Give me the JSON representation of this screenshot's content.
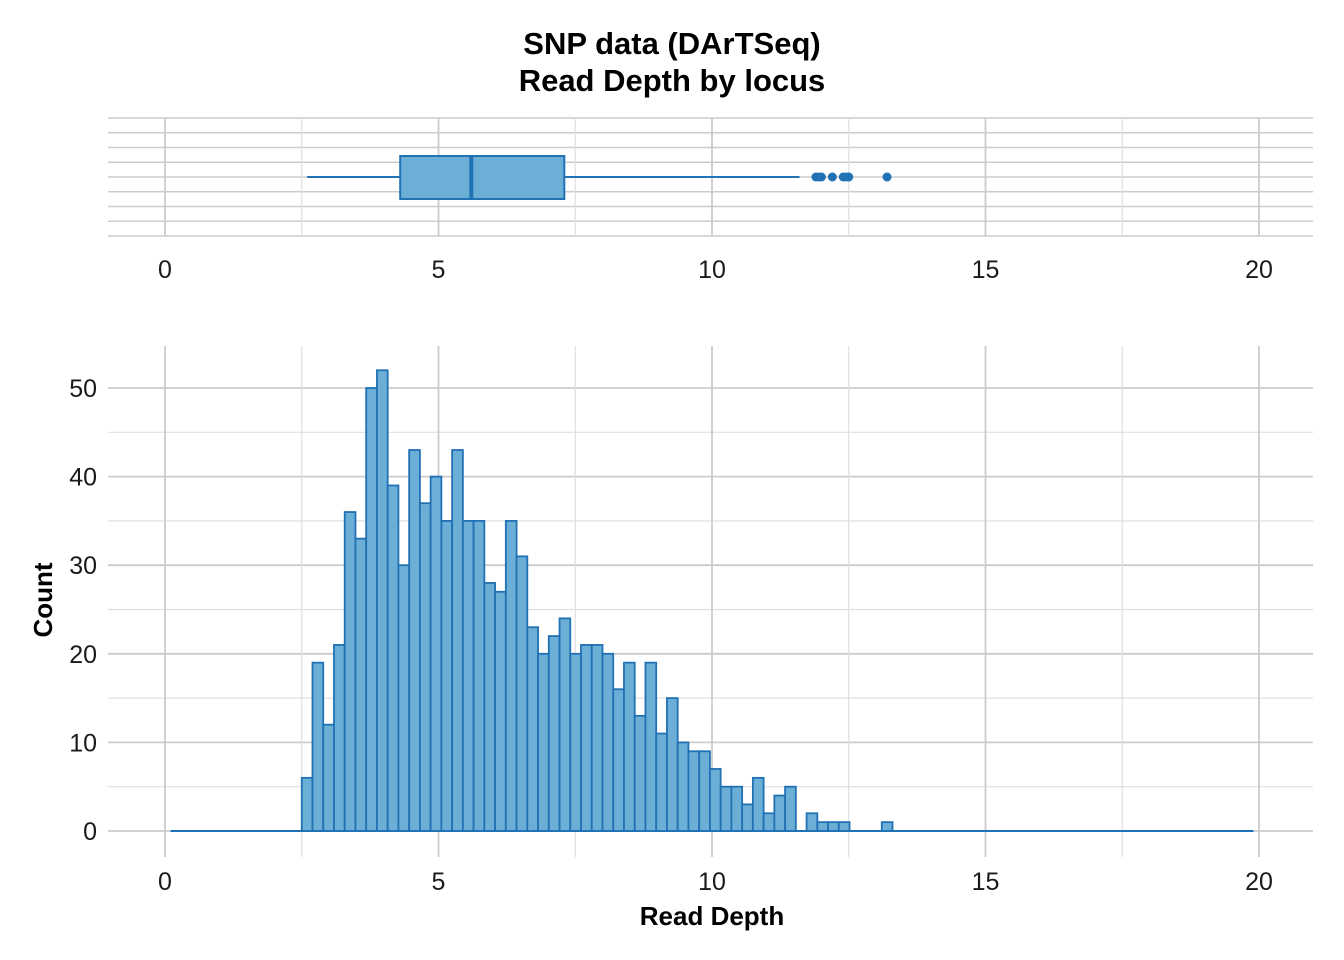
{
  "title_lines": [
    "SNP data (DArTSeq)",
    "Read Depth by locus"
  ],
  "colors": {
    "fill": "#6baed6",
    "stroke": "#2171b5",
    "grid_major": "#cccccc",
    "grid_minor": "#e0e0e0"
  },
  "chart_data": [
    {
      "type": "boxplot",
      "title": "SNP data (DArTSeq) Read Depth by locus",
      "xlim": [
        0,
        20
      ],
      "x_ticks": [
        "0",
        "5",
        "10",
        "15",
        "20"
      ],
      "stats": {
        "whisker_low": 2.6,
        "q1": 4.3,
        "median": 5.6,
        "q3": 7.3,
        "whisker_high": 11.6
      },
      "outliers": [
        11.9,
        11.95,
        12.0,
        12.2,
        12.4,
        12.45,
        12.5,
        13.2
      ],
      "grid": true
    },
    {
      "type": "bar",
      "subtype": "histogram",
      "xlabel": "Read Depth",
      "ylabel": "Count",
      "xlim": [
        0,
        20
      ],
      "ylim": [
        0,
        55
      ],
      "x_ticks": [
        "0",
        "5",
        "10",
        "15",
        "20"
      ],
      "y_ticks": [
        "0",
        "10",
        "20",
        "30",
        "40",
        "50"
      ],
      "bin_width": 0.167,
      "range_start": 2.5,
      "range_end": 13.3,
      "values": [
        6,
        19,
        12,
        21,
        36,
        33,
        50,
        52,
        39,
        30,
        43,
        37,
        40,
        35,
        43,
        35,
        35,
        28,
        27,
        35,
        31,
        23,
        20,
        22,
        24,
        20,
        21,
        21,
        20,
        16,
        19,
        13,
        19,
        11,
        15,
        10,
        9,
        9,
        7,
        5,
        5,
        3,
        6,
        2,
        4,
        5,
        0,
        2,
        1,
        1,
        1,
        0,
        0,
        0,
        1
      ],
      "grid": true
    }
  ],
  "axis_titles": {
    "x": "Read Depth",
    "y": "Count"
  }
}
